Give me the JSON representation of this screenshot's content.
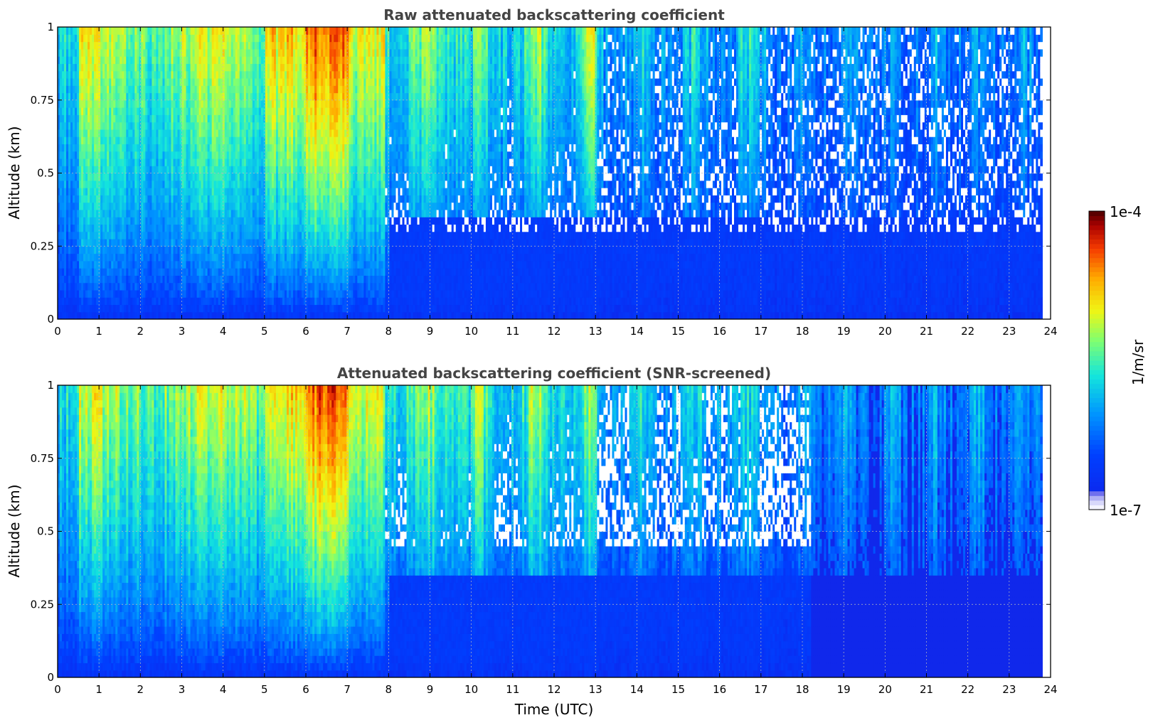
{
  "chart_data": [
    {
      "type": "heatmap",
      "title": "Raw attenuated backscattering coefficient",
      "ylabel": "Altitude (km)",
      "xlabel": "",
      "xlim": [
        0,
        24
      ],
      "ylim": [
        0,
        1
      ],
      "xticks": [
        "0",
        "1",
        "2",
        "3",
        "4",
        "5",
        "6",
        "7",
        "8",
        "9",
        "10",
        "11",
        "12",
        "13",
        "14",
        "15",
        "16",
        "17",
        "18",
        "19",
        "20",
        "21",
        "22",
        "23",
        "24"
      ],
      "yticks": [
        "0",
        "0.25",
        "0.5",
        "0.75",
        "1"
      ],
      "ytick_values": [
        0,
        0.25,
        0.5,
        0.75,
        1
      ],
      "grid": true,
      "colormap": "jet",
      "scale": "log",
      "data_extent_x": [
        0,
        23.8
      ],
      "masked_regions": false
    },
    {
      "type": "heatmap",
      "title": "Attenuated backscattering coefficient (SNR-screened)",
      "ylabel": "Altitude (km)",
      "xlabel": "Time (UTC)",
      "xlim": [
        0,
        24
      ],
      "ylim": [
        0,
        1
      ],
      "xticks": [
        "0",
        "1",
        "2",
        "3",
        "4",
        "5",
        "6",
        "7",
        "8",
        "9",
        "10",
        "11",
        "12",
        "13",
        "14",
        "15",
        "16",
        "17",
        "18",
        "19",
        "20",
        "21",
        "22",
        "23",
        "24"
      ],
      "yticks": [
        "0",
        "0.25",
        "0.5",
        "0.75",
        "1"
      ],
      "ytick_values": [
        0,
        0.25,
        0.5,
        0.75,
        1
      ],
      "grid": true,
      "colormap": "jet",
      "scale": "log",
      "data_extent_x": [
        0,
        23.8
      ],
      "masked_regions": true
    }
  ],
  "colorbar": {
    "label": "1/m/sr",
    "max_label": "1e-4",
    "min_label": "1e-7",
    "scale": "log",
    "min": 1e-07,
    "max": 0.0001
  },
  "colors": {
    "title": "#444444",
    "background_low": "#0a2ae8",
    "mask": "#ffffff",
    "grid": "#bbbbbb"
  }
}
